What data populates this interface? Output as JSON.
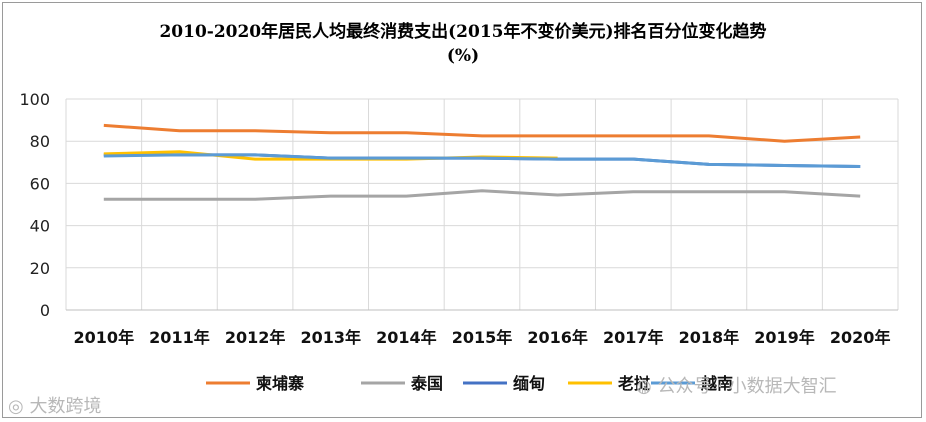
{
  "chart_data": {
    "type": "line",
    "title_line1": "2010-2020年居民人均最终消费支出(2015年不变价美元)排名百分位变化趋势",
    "title_line2": "(%)",
    "x": [
      "2010年",
      "2011年",
      "2012年",
      "2013年",
      "2014年",
      "2015年",
      "2016年",
      "2017年",
      "2018年",
      "2019年",
      "2020年"
    ],
    "ylim": [
      0,
      100
    ],
    "yticks": [
      0,
      20,
      40,
      60,
      80,
      100
    ],
    "grid": true,
    "legend_position": "bottom",
    "series": [
      {
        "name": "柬埔寨",
        "color": "#ED7D31",
        "values": [
          87.5,
          85,
          85,
          84,
          84,
          82.5,
          82.5,
          82.5,
          82.5,
          80,
          82
        ]
      },
      {
        "name": "泰国",
        "color": "#A5A5A5",
        "values": [
          52.5,
          52.5,
          52.5,
          54,
          54,
          56.5,
          54.5,
          56,
          56,
          56,
          54
        ]
      },
      {
        "name": "缅甸",
        "color": "#4472C4",
        "values": [
          73.5,
          73.5,
          73.5,
          72,
          72,
          72,
          71.5,
          71.5,
          69,
          68.5,
          68
        ]
      },
      {
        "name": "老挝",
        "color": "#FFC000",
        "values": [
          74,
          75,
          71.5,
          71.5,
          71.5,
          72.5,
          72,
          null,
          null,
          null,
          null
        ]
      },
      {
        "name": "越南",
        "color": "#5B9BD5",
        "values": [
          73,
          73.5,
          73.5,
          72,
          72,
          72,
          71.5,
          71.5,
          69,
          68.5,
          68
        ]
      }
    ]
  },
  "watermarks": {
    "left": "大数跨境",
    "right": "公众号 · 小数据大智汇"
  }
}
